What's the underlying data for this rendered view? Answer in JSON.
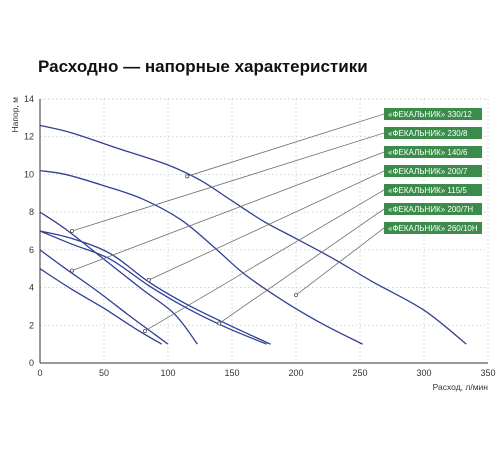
{
  "chart_data": {
    "type": "line",
    "title": "Расходно — напорные характеристики",
    "xlabel": "Расход, л/мин",
    "ylabel": "Напор, м",
    "xlim": [
      0,
      350
    ],
    "ylim": [
      0,
      14
    ],
    "x_ticks": [
      "0",
      "50",
      "100",
      "150",
      "200",
      "250",
      "300",
      "350"
    ],
    "y_ticks": [
      "0",
      "2",
      "4",
      "6",
      "8",
      "10",
      "12",
      "14"
    ],
    "grid": true,
    "legend_position": "right",
    "series_color": "#2f3f96",
    "legend_color": "#3b8b4b",
    "series": [
      {
        "name": "«ФЕКАЛЬНИК» 330/12",
        "points": [
          [
            0,
            12.6
          ],
          [
            25,
            12.2
          ],
          [
            60,
            11.4
          ],
          [
            100,
            10.5
          ],
          [
            125,
            9.7
          ],
          [
            150,
            8.6
          ],
          [
            175,
            7.5
          ],
          [
            200,
            6.6
          ],
          [
            230,
            5.5
          ],
          [
            260,
            4.3
          ],
          [
            300,
            2.8
          ],
          [
            333,
            1.0
          ]
        ]
      },
      {
        "name": "«ФЕКАЛЬНИК» 230/8",
        "points": [
          [
            0,
            10.2
          ],
          [
            20,
            10.0
          ],
          [
            50,
            9.4
          ],
          [
            80,
            8.7
          ],
          [
            110,
            7.6
          ],
          [
            135,
            6.2
          ],
          [
            160,
            4.7
          ],
          [
            190,
            3.3
          ],
          [
            220,
            2.1
          ],
          [
            252,
            1.0
          ]
        ]
      },
      {
        "name": "«ФЕКАЛЬНИК» 140/6",
        "points": [
          [
            0,
            8.0
          ],
          [
            20,
            7.1
          ],
          [
            50,
            5.5
          ],
          [
            80,
            3.9
          ],
          [
            105,
            2.6
          ],
          [
            123,
            1.0
          ]
        ]
      },
      {
        "name": "«ФЕКАЛЬНИК» 200/7",
        "points": [
          [
            0,
            7.0
          ],
          [
            25,
            6.6
          ],
          [
            55,
            5.8
          ],
          [
            85,
            4.3
          ],
          [
            115,
            3.1
          ],
          [
            145,
            2.1
          ],
          [
            180,
            1.0
          ]
        ]
      },
      {
        "name": "«ФЕКАЛЬНИК» 115/5",
        "points": [
          [
            0,
            6.0
          ],
          [
            20,
            5.0
          ],
          [
            45,
            3.8
          ],
          [
            70,
            2.5
          ],
          [
            90,
            1.5
          ],
          [
            100,
            1.0
          ]
        ]
      },
      {
        "name": "«ФЕКАЛЬНИК» 200/7Н",
        "points": [
          [
            0,
            7.0
          ],
          [
            25,
            6.3
          ],
          [
            55,
            5.5
          ],
          [
            85,
            4.1
          ],
          [
            115,
            2.9
          ],
          [
            145,
            1.9
          ],
          [
            177,
            1.0
          ]
        ]
      },
      {
        "name": "«ФЕКАЛЬНИК» 260/10Н",
        "points": [
          [
            0,
            5.0
          ],
          [
            25,
            3.9
          ],
          [
            50,
            2.9
          ],
          [
            75,
            1.8
          ],
          [
            95,
            1.0
          ]
        ]
      }
    ],
    "leaders": [
      {
        "series": 0,
        "at": [
          115,
          9.9
        ]
      },
      {
        "series": 1,
        "at": [
          25,
          7.0
        ]
      },
      {
        "series": 2,
        "at": [
          25,
          4.9
        ]
      },
      {
        "series": 3,
        "at": [
          85,
          4.4
        ]
      },
      {
        "series": 4,
        "at": [
          82,
          1.7
        ]
      },
      {
        "series": 5,
        "at": [
          140,
          2.1
        ]
      },
      {
        "series": 6,
        "at": [
          200,
          3.6
        ]
      }
    ]
  }
}
